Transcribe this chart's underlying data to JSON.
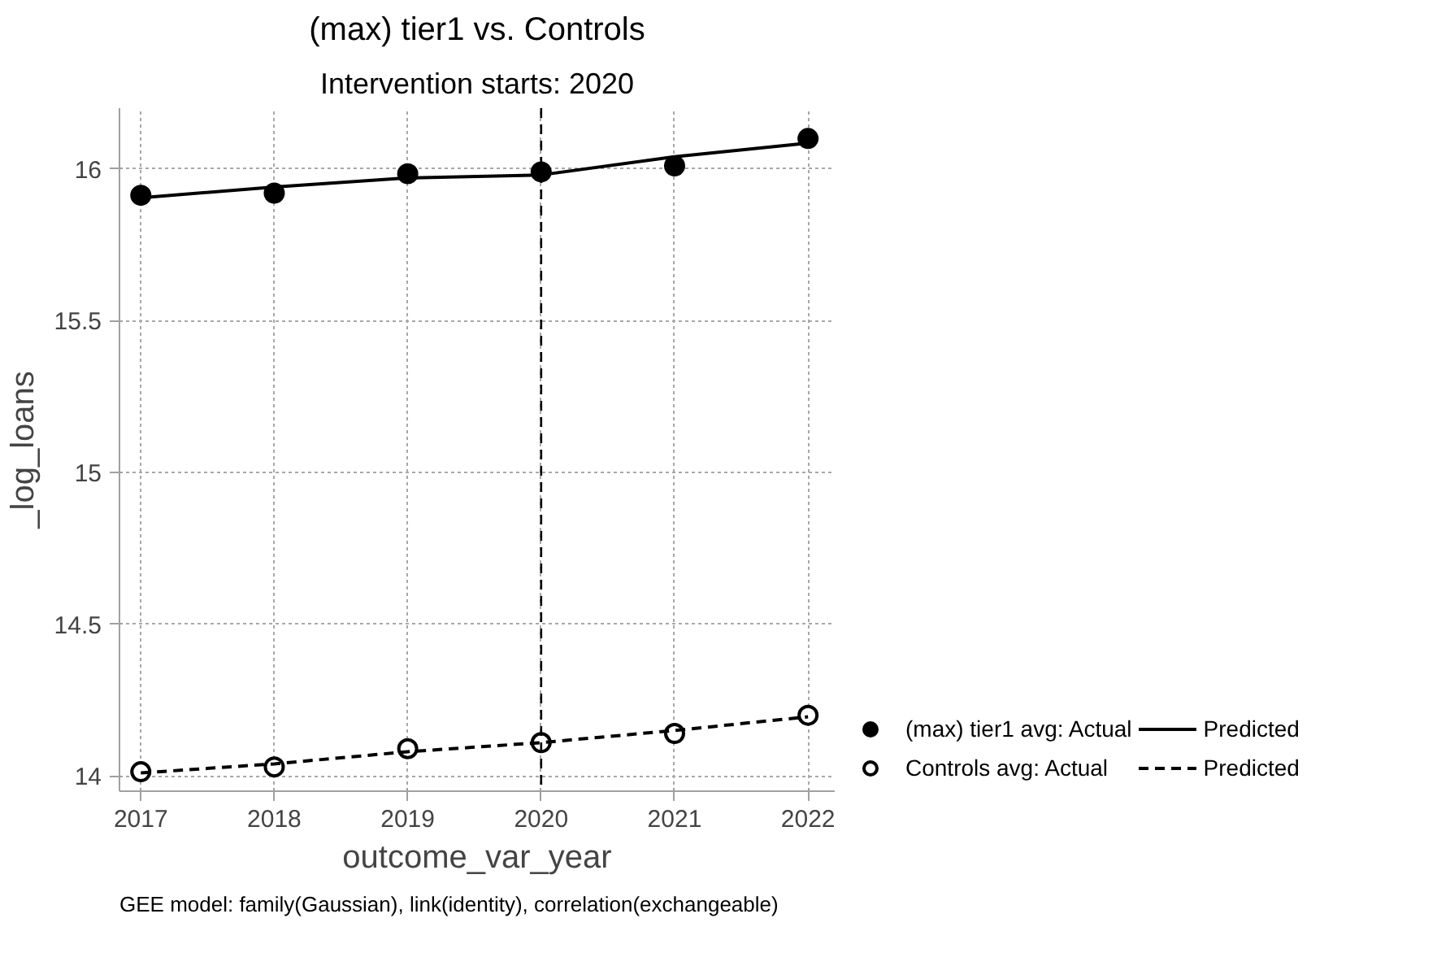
{
  "chart_data": {
    "type": "line",
    "title": "(max) tier1 vs. Controls",
    "subtitle": "Intervention starts: 2020",
    "xlabel": "outcome_var_year",
    "ylabel": "_log_loans",
    "annotations": [
      "GEE model: family(Gaussian), link(identity), correlation(exchangeable)"
    ],
    "x": [
      2017,
      2018,
      2019,
      2020,
      2021,
      2022
    ],
    "series": [
      {
        "name": "(max) tier1 avg: Actual",
        "type": "scatter",
        "marker": "circle",
        "color": "#000000",
        "values": [
          15.913,
          15.92,
          15.984,
          15.99,
          16.01,
          16.1
        ]
      },
      {
        "name": "Predicted",
        "line_style": "solid",
        "color": "#000000",
        "values": [
          15.905,
          15.94,
          15.97,
          15.98,
          16.04,
          16.085
        ]
      },
      {
        "name": "Controls avg: Actual",
        "type": "scatter",
        "marker": "circle_open",
        "color": "#000000",
        "values": [
          14.014,
          14.03,
          14.09,
          14.11,
          14.14,
          14.2
        ]
      },
      {
        "name": "Predicted",
        "line_style": "dashed",
        "color": "#000000",
        "values": [
          14.01,
          14.04,
          14.08,
          14.11,
          14.15,
          14.195
        ]
      }
    ],
    "xlim": [
      2016.84,
      2022.2
    ],
    "ylim": [
      13.95,
      16.2
    ],
    "xticks": [
      2017,
      2018,
      2019,
      2020,
      2021,
      2022
    ],
    "yticks": [
      14,
      14.5,
      15,
      15.5,
      16
    ],
    "ref_lines": [
      {
        "axis": "x",
        "value": 2020,
        "color": "#000000",
        "line_style": "dashed"
      }
    ],
    "grid": true,
    "legend": "bottom right"
  }
}
